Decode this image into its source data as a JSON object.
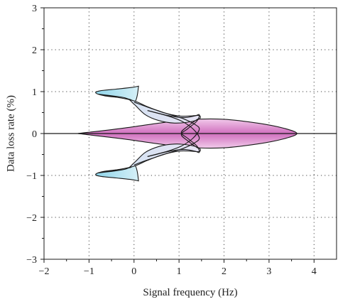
{
  "chart_data": {
    "type": "area",
    "title": "",
    "xlabel": "Signal frequency (Hz)",
    "ylabel": "Data loss rate (%)",
    "xlim": [
      -2,
      4.5
    ],
    "ylim": [
      -3,
      3
    ],
    "xticks": [
      -2,
      -1,
      0,
      1,
      2,
      3,
      4
    ],
    "yticks": [
      -3,
      -2,
      -1,
      0,
      1,
      2,
      3
    ],
    "xtick_labels": [
      "−2",
      "−1",
      "0",
      "1",
      "2",
      "3",
      "4"
    ],
    "ytick_labels": [
      "−3",
      "−2",
      "−1",
      "0",
      "1",
      "2",
      "3"
    ],
    "grid": "dotted",
    "zero_line": 0,
    "colors": {
      "pink_fill": "#d678c4",
      "pink_light": "#f4d2ee",
      "cyan_fill": "#a9dfee",
      "lavender_fill": "#dcdcf2",
      "outline": "#1a1a1a"
    },
    "shapes": [
      {
        "name": "central-lens",
        "fill": "pink",
        "points": [
          [
            -1.25,
            0
          ],
          [
            -0.3,
            0.12
          ],
          [
            0.5,
            0.24
          ],
          [
            1.2,
            0.33
          ],
          [
            2.0,
            0.34
          ],
          [
            2.8,
            0.24
          ],
          [
            3.35,
            0.12
          ],
          [
            3.62,
            0
          ],
          [
            3.35,
            -0.12
          ],
          [
            2.8,
            -0.24
          ],
          [
            2.0,
            -0.34
          ],
          [
            1.2,
            -0.33
          ],
          [
            0.5,
            -0.24
          ],
          [
            -0.3,
            -0.12
          ],
          [
            -1.25,
            0
          ]
        ]
      },
      {
        "name": "upper-cyan-lobe",
        "fill": "cyan",
        "points": [
          [
            0.1,
            1.13
          ],
          [
            -0.05,
            1.1
          ],
          [
            -0.4,
            1.06
          ],
          [
            -0.75,
            1.02
          ],
          [
            -0.85,
            0.97
          ],
          [
            -0.65,
            0.9
          ],
          [
            -0.25,
            0.85
          ],
          [
            -0.08,
            0.81
          ],
          [
            0.02,
            0.76
          ],
          [
            0.07,
            0.9
          ],
          [
            0.1,
            1.13
          ]
        ]
      },
      {
        "name": "upper-lavender-band",
        "fill": "lavender",
        "points": [
          [
            -0.8,
            0.94
          ],
          [
            -0.4,
            0.87
          ],
          [
            0.0,
            0.78
          ],
          [
            0.3,
            0.64
          ],
          [
            0.65,
            0.5
          ],
          [
            1.0,
            0.42
          ],
          [
            1.25,
            0.42
          ],
          [
            1.45,
            0.43
          ],
          [
            1.45,
            0.35
          ],
          [
            1.25,
            0.28
          ],
          [
            0.9,
            0.25
          ],
          [
            0.55,
            0.31
          ],
          [
            0.25,
            0.45
          ],
          [
            0.0,
            0.7
          ],
          [
            -0.2,
            0.85
          ],
          [
            -0.8,
            0.94
          ]
        ]
      },
      {
        "name": "lower-cyan-lobe",
        "fill": "cyan",
        "points": [
          [
            0.1,
            -1.13
          ],
          [
            -0.05,
            -1.1
          ],
          [
            -0.4,
            -1.06
          ],
          [
            -0.75,
            -1.02
          ],
          [
            -0.85,
            -0.97
          ],
          [
            -0.65,
            -0.9
          ],
          [
            -0.25,
            -0.85
          ],
          [
            -0.08,
            -0.81
          ],
          [
            0.02,
            -0.76
          ],
          [
            0.07,
            -0.9
          ],
          [
            0.1,
            -1.13
          ]
        ]
      },
      {
        "name": "lower-lavender-band",
        "fill": "lavender",
        "points": [
          [
            -0.8,
            -0.94
          ],
          [
            -0.4,
            -0.87
          ],
          [
            0.0,
            -0.78
          ],
          [
            0.3,
            -0.64
          ],
          [
            0.65,
            -0.5
          ],
          [
            1.0,
            -0.42
          ],
          [
            1.25,
            -0.42
          ],
          [
            1.45,
            -0.43
          ],
          [
            1.45,
            -0.35
          ],
          [
            1.25,
            -0.28
          ],
          [
            0.9,
            -0.25
          ],
          [
            0.55,
            -0.31
          ],
          [
            0.25,
            -0.45
          ],
          [
            0.0,
            -0.7
          ],
          [
            -0.2,
            -0.85
          ],
          [
            -0.8,
            -0.94
          ]
        ]
      }
    ],
    "curves": [
      {
        "name": "upper-outline-a",
        "points": [
          [
            0.0,
            0.75
          ],
          [
            0.3,
            0.63
          ],
          [
            0.75,
            0.47
          ],
          [
            1.1,
            0.35
          ],
          [
            1.35,
            0.22
          ],
          [
            1.45,
            0.1
          ],
          [
            1.3,
            -0.12
          ],
          [
            1.05,
            -0.3
          ],
          [
            0.75,
            -0.42
          ],
          [
            0.3,
            -0.55
          ]
        ]
      },
      {
        "name": "upper-outline-b",
        "points": [
          [
            0.3,
            0.55
          ],
          [
            0.75,
            0.43
          ],
          [
            1.1,
            0.38
          ],
          [
            1.35,
            0.42
          ],
          [
            1.45,
            0.45
          ],
          [
            1.4,
            0.3
          ],
          [
            1.2,
            0.12
          ],
          [
            1.05,
            -0.02
          ],
          [
            1.2,
            -0.18
          ],
          [
            1.42,
            -0.35
          ]
        ]
      },
      {
        "name": "lower-outline-a",
        "points": [
          [
            0.0,
            -0.75
          ],
          [
            0.3,
            -0.63
          ],
          [
            0.75,
            -0.47
          ],
          [
            1.1,
            -0.35
          ],
          [
            1.35,
            -0.22
          ],
          [
            1.45,
            -0.1
          ],
          [
            1.3,
            0.12
          ],
          [
            1.05,
            0.3
          ],
          [
            0.75,
            0.42
          ],
          [
            0.3,
            0.55
          ]
        ]
      },
      {
        "name": "lower-outline-b",
        "points": [
          [
            0.3,
            -0.55
          ],
          [
            0.75,
            -0.43
          ],
          [
            1.1,
            -0.38
          ],
          [
            1.35,
            -0.42
          ],
          [
            1.45,
            -0.45
          ],
          [
            1.4,
            -0.3
          ],
          [
            1.2,
            -0.12
          ],
          [
            1.05,
            0.02
          ],
          [
            1.2,
            0.18
          ],
          [
            1.42,
            0.35
          ]
        ]
      }
    ]
  }
}
